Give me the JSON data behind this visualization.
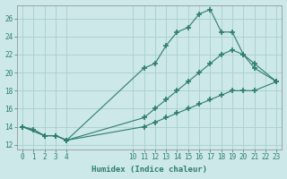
{
  "line1_x": [
    0,
    1,
    2,
    3,
    4,
    11,
    12,
    13,
    14,
    15,
    16,
    17,
    18,
    19,
    20,
    21,
    23
  ],
  "line1_y": [
    14.0,
    13.7,
    13.0,
    13.0,
    12.5,
    20.5,
    21.0,
    23.0,
    24.5,
    25.0,
    26.5,
    27.0,
    24.5,
    24.5,
    22.0,
    20.5,
    19.0
  ],
  "line2_x": [
    0,
    2,
    3,
    4,
    11,
    12,
    13,
    14,
    15,
    16,
    17,
    18,
    19,
    20,
    21,
    23
  ],
  "line2_y": [
    14.0,
    13.0,
    13.0,
    12.5,
    15.0,
    16.0,
    17.0,
    18.0,
    19.0,
    20.0,
    21.0,
    22.0,
    22.5,
    22.0,
    21.0,
    19.0
  ],
  "line3_x": [
    0,
    2,
    3,
    4,
    11,
    12,
    13,
    14,
    15,
    16,
    17,
    18,
    19,
    20,
    21,
    23
  ],
  "line3_y": [
    14.0,
    13.0,
    13.0,
    12.5,
    14.0,
    14.5,
    15.0,
    15.5,
    16.0,
    16.5,
    17.0,
    17.5,
    18.0,
    18.0,
    18.0,
    19.0
  ],
  "line_color": "#2e7d6e",
  "bg_color": "#cce8e8",
  "grid_color": "#aacece",
  "xlabel": "Humidex (Indice chaleur)",
  "xtick_labels": [
    "0",
    "1",
    "2",
    "3",
    "4",
    "10",
    "11",
    "12",
    "13",
    "14",
    "15",
    "16",
    "17",
    "18",
    "19",
    "20",
    "21",
    "22",
    "23"
  ],
  "xtick_positions": [
    0,
    1,
    2,
    3,
    4,
    10,
    11,
    12,
    13,
    14,
    15,
    16,
    17,
    18,
    19,
    20,
    21,
    22,
    23
  ],
  "yticks": [
    12,
    14,
    16,
    18,
    20,
    22,
    24,
    26
  ],
  "ylim": [
    11.5,
    27.5
  ],
  "xlim": [
    -0.5,
    23.5
  ]
}
